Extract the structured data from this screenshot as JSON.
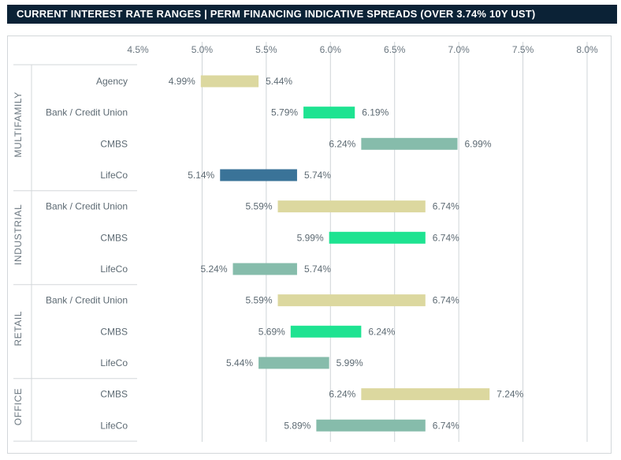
{
  "header": {
    "title": "CURRENT INTEREST RATE RANGES  |  PERM FINANCING INDICATIVE SPREADS (OVER 3.74% 10Y UST)"
  },
  "chart_data": {
    "type": "floating-bar",
    "title": "CURRENT INTEREST RATE RANGES  |  PERM FINANCING INDICATIVE SPREADS (OVER 3.74% 10Y UST)",
    "xlim": [
      4.5,
      8.0
    ],
    "xticks": [
      "4.5%",
      "5.0%",
      "5.5%",
      "6.0%",
      "6.5%",
      "7.0%",
      "7.5%",
      "8.0%"
    ],
    "tick_values": [
      4.5,
      5.0,
      5.5,
      6.0,
      6.5,
      7.0,
      7.5,
      8.0
    ],
    "grid": "vertical",
    "colors": {
      "khaki": "#dcd89f",
      "green": "#1ee391",
      "teal": "#86bcab",
      "blue": "#3a7398"
    },
    "groups": [
      {
        "name": "MULTIFAMILY",
        "rows": [
          {
            "label": "Agency",
            "low": 4.99,
            "high": 5.44,
            "low_label": "4.99%",
            "high_label": "5.44%",
            "color": "#dcd89f"
          },
          {
            "label": "Bank / Credit Union",
            "low": 5.79,
            "high": 6.19,
            "low_label": "5.79%",
            "high_label": "6.19%",
            "color": "#1ee391"
          },
          {
            "label": "CMBS",
            "low": 6.24,
            "high": 6.99,
            "low_label": "6.24%",
            "high_label": "6.99%",
            "color": "#86bcab"
          },
          {
            "label": "LifeCo",
            "low": 5.14,
            "high": 5.74,
            "low_label": "5.14%",
            "high_label": "5.74%",
            "color": "#3a7398"
          }
        ]
      },
      {
        "name": "INDUSTRIAL",
        "rows": [
          {
            "label": "Bank / Credit Union",
            "low": 5.59,
            "high": 6.74,
            "low_label": "5.59%",
            "high_label": "6.74%",
            "color": "#dcd89f"
          },
          {
            "label": "CMBS",
            "low": 5.99,
            "high": 6.74,
            "low_label": "5.99%",
            "high_label": "6.74%",
            "color": "#1ee391"
          },
          {
            "label": "LifeCo",
            "low": 5.24,
            "high": 5.74,
            "low_label": "5.24%",
            "high_label": "5.74%",
            "color": "#86bcab"
          }
        ]
      },
      {
        "name": "RETAIL",
        "rows": [
          {
            "label": "Bank / Credit Union",
            "low": 5.59,
            "high": 6.74,
            "low_label": "5.59%",
            "high_label": "6.74%",
            "color": "#dcd89f"
          },
          {
            "label": "CMBS",
            "low": 5.69,
            "high": 6.24,
            "low_label": "5.69%",
            "high_label": "6.24%",
            "color": "#1ee391"
          },
          {
            "label": "LifeCo",
            "low": 5.44,
            "high": 5.99,
            "low_label": "5.44%",
            "high_label": "5.99%",
            "color": "#86bcab"
          }
        ]
      },
      {
        "name": "OFFICE",
        "rows": [
          {
            "label": "CMBS",
            "low": 6.24,
            "high": 7.24,
            "low_label": "6.24%",
            "high_label": "7.24%",
            "color": "#dcd89f"
          },
          {
            "label": "LifeCo",
            "low": 5.89,
            "high": 6.74,
            "low_label": "5.89%",
            "high_label": "6.74%",
            "color": "#86bcab"
          }
        ]
      }
    ]
  }
}
